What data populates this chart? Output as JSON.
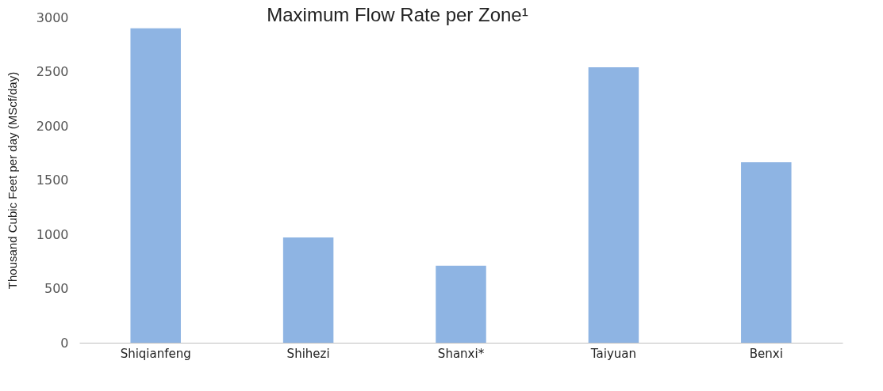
{
  "chart_data": {
    "type": "bar",
    "title": "Maximum Flow Rate per Zone¹",
    "ylabel": "Thousand Cubic Feet per day (MScf/day)",
    "categories": [
      "Shiqianfeng",
      "Shihezi",
      "Shanxi*",
      "Taiyuan",
      "Benxi"
    ],
    "values": [
      2900,
      970,
      710,
      2540,
      1665
    ],
    "color": "#8eb4e3",
    "ylim": [
      0,
      3000
    ],
    "yticks": [
      0,
      500,
      1000,
      1500,
      2000,
      2500,
      3000
    ],
    "grid": false,
    "legend": false
  }
}
